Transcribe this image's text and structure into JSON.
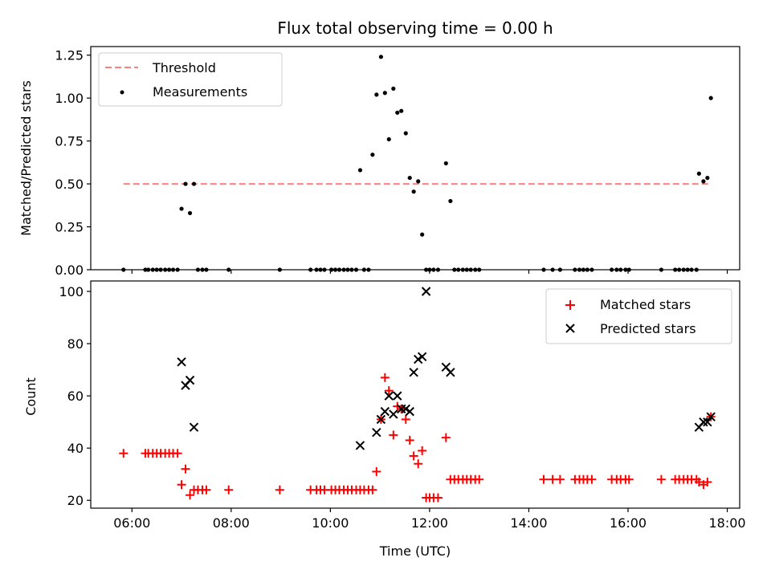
{
  "chart_data": [
    {
      "type": "scatter",
      "title": "Flux total observing time = 0.00 h",
      "xlabel": "",
      "ylabel": "Matched/Predicted stars",
      "xlim": [
        5.17,
        18.25
      ],
      "ylim": [
        0,
        1.3
      ],
      "xticks": [
        6,
        8,
        10,
        12,
        14,
        16,
        18
      ],
      "xtick_labels": [
        "06:00",
        "08:00",
        "10:00",
        "12:00",
        "14:00",
        "16:00",
        "18:00"
      ],
      "yticks": [
        0,
        0.25,
        0.5,
        0.75,
        1.0,
        1.25
      ],
      "ytick_labels": [
        "0.00",
        "0.25",
        "0.50",
        "0.75",
        "1.00",
        "1.25"
      ],
      "legend_position": "top-left",
      "series": [
        {
          "name": "Threshold",
          "kind": "dashed-line",
          "color": "#ff7f7f",
          "x": [
            5.83,
            17.67
          ],
          "y": [
            0.5,
            0.5
          ]
        },
        {
          "name": "Measurements",
          "kind": "dot",
          "color": "#000000",
          "x": [
            5.83,
            6.27,
            6.33,
            6.42,
            6.5,
            6.58,
            6.67,
            6.75,
            6.83,
            6.92,
            7.0,
            7.08,
            7.17,
            7.25,
            7.33,
            7.42,
            7.5,
            7.95,
            8.98,
            9.6,
            9.72,
            9.8,
            9.88,
            10.02,
            10.1,
            10.18,
            10.27,
            10.35,
            10.43,
            10.52,
            10.6,
            10.68,
            10.77,
            10.85,
            10.93,
            11.02,
            11.1,
            11.18,
            11.27,
            11.35,
            11.43,
            11.52,
            11.6,
            11.68,
            11.77,
            11.85,
            11.93,
            12.0,
            12.08,
            12.17,
            12.33,
            12.42,
            12.5,
            12.58,
            12.67,
            12.75,
            12.83,
            12.92,
            13.0,
            14.3,
            14.48,
            14.63,
            14.93,
            15.02,
            15.1,
            15.18,
            15.27,
            15.67,
            15.77,
            15.85,
            15.95,
            16.02,
            16.67,
            16.95,
            17.03,
            17.12,
            17.2,
            17.28,
            17.38,
            17.43,
            17.52,
            17.6,
            17.67
          ],
          "y": [
            0,
            0,
            0,
            0,
            0,
            0,
            0,
            0,
            0,
            0,
            0.355,
            0.5,
            0.33,
            0.5,
            0,
            0,
            0,
            0,
            0,
            0,
            0,
            0,
            0,
            0,
            0,
            0,
            0,
            0,
            0,
            0,
            0.58,
            0,
            0,
            0.67,
            1.02,
            1.24,
            1.03,
            0.76,
            1.055,
            0.915,
            0.925,
            0.795,
            0.535,
            0.455,
            0.515,
            0.205,
            0,
            0,
            0,
            0,
            0.62,
            0.4,
            0,
            0,
            0,
            0,
            0,
            0,
            0,
            0,
            0,
            0,
            0,
            0,
            0,
            0,
            0,
            0,
            0,
            0,
            0,
            0,
            0,
            0,
            0,
            0,
            0,
            0,
            0,
            0.56,
            0.515,
            0.535,
            1.0
          ]
        }
      ]
    },
    {
      "type": "scatter",
      "title": "",
      "xlabel": "Time (UTC)",
      "ylabel": "Count",
      "xlim": [
        5.17,
        18.25
      ],
      "ylim": [
        17,
        104
      ],
      "xticks": [
        6,
        8,
        10,
        12,
        14,
        16,
        18
      ],
      "xtick_labels": [
        "06:00",
        "08:00",
        "10:00",
        "12:00",
        "14:00",
        "16:00",
        "18:00"
      ],
      "yticks": [
        20,
        40,
        60,
        80,
        100
      ],
      "ytick_labels": [
        "20",
        "40",
        "60",
        "80",
        "100"
      ],
      "legend_position": "top-right",
      "series": [
        {
          "name": "Matched stars",
          "kind": "plus",
          "color": "#ff0000",
          "x": [
            5.83,
            6.27,
            6.33,
            6.42,
            6.5,
            6.58,
            6.67,
            6.75,
            6.83,
            6.92,
            7.0,
            7.08,
            7.17,
            7.25,
            7.33,
            7.42,
            7.5,
            7.95,
            8.98,
            9.6,
            9.72,
            9.8,
            9.88,
            10.02,
            10.1,
            10.18,
            10.27,
            10.35,
            10.43,
            10.52,
            10.6,
            10.68,
            10.77,
            10.85,
            10.93,
            11.02,
            11.1,
            11.18,
            11.27,
            11.35,
            11.43,
            11.52,
            11.6,
            11.68,
            11.77,
            11.85,
            11.93,
            12.0,
            12.08,
            12.17,
            12.33,
            12.42,
            12.5,
            12.58,
            12.67,
            12.75,
            12.83,
            12.92,
            13.0,
            14.3,
            14.48,
            14.63,
            14.93,
            15.02,
            15.1,
            15.18,
            15.27,
            15.67,
            15.77,
            15.85,
            15.95,
            16.02,
            16.67,
            16.95,
            17.03,
            17.12,
            17.2,
            17.28,
            17.38,
            17.43,
            17.52,
            17.6,
            17.67
          ],
          "y": [
            38,
            38,
            38,
            38,
            38,
            38,
            38,
            38,
            38,
            38,
            26,
            32,
            22,
            24,
            24,
            24,
            24,
            24,
            24,
            24,
            24,
            24,
            24,
            24,
            24,
            24,
            24,
            24,
            24,
            24,
            24,
            24,
            24,
            24,
            31,
            51,
            67,
            62,
            45,
            56,
            55,
            51,
            43,
            37,
            34,
            39,
            21,
            21,
            21,
            21,
            44,
            28,
            28,
            28,
            28,
            28,
            28,
            28,
            28,
            28,
            28,
            28,
            28,
            28,
            28,
            28,
            28,
            28,
            28,
            28,
            28,
            28,
            28,
            28,
            28,
            28,
            28,
            28,
            28,
            27,
            26,
            27,
            52
          ]
        },
        {
          "name": "Predicted stars",
          "kind": "x",
          "color": "#000000",
          "x": [
            7.0,
            7.08,
            7.17,
            7.25,
            10.6,
            10.93,
            11.02,
            11.1,
            11.18,
            11.27,
            11.35,
            11.43,
            11.52,
            11.6,
            11.68,
            11.77,
            11.85,
            11.93,
            12.33,
            12.42,
            17.43,
            17.52,
            17.6,
            17.67
          ],
          "y": [
            73,
            64,
            66,
            48,
            41,
            46,
            51,
            54,
            60,
            53,
            60,
            55,
            55,
            54,
            69,
            74,
            75,
            100,
            71,
            69,
            48,
            50,
            50,
            52
          ]
        }
      ]
    }
  ]
}
